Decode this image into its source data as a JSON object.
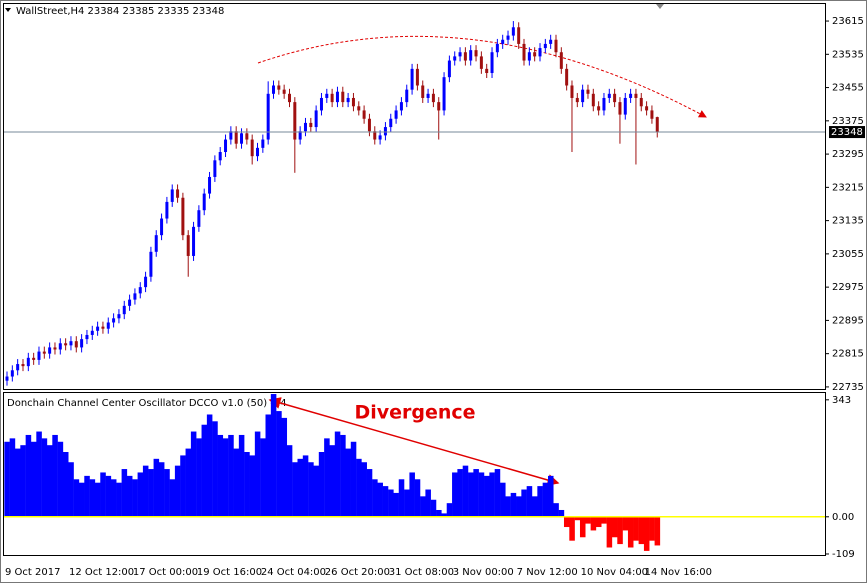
{
  "chart_data": [
    {
      "type": "candlestick",
      "title": "WallStreet,H4  23384 23385 23335 23348",
      "up_color": "#0000ff",
      "down_color": "#a01010",
      "ylim": [
        22730,
        23656
      ],
      "yticks": [
        23615,
        23535,
        23455,
        23375,
        23295,
        23215,
        23135,
        23055,
        22975,
        22895,
        22815,
        22735
      ],
      "last_price": 23348,
      "categories": [
        "9 Oct 2017",
        null,
        null,
        null,
        null,
        null,
        null,
        null,
        null,
        null,
        null,
        null,
        "12 Oct 12:00",
        null,
        null,
        null,
        null,
        null,
        null,
        null,
        null,
        null,
        null,
        null,
        "17 Oct 00:00",
        null,
        null,
        null,
        null,
        null,
        null,
        null,
        null,
        null,
        null,
        null,
        "19 Oct 16:00",
        null,
        null,
        null,
        null,
        null,
        null,
        null,
        null,
        null,
        null,
        null,
        "24 Oct 04:00",
        null,
        null,
        null,
        null,
        null,
        null,
        null,
        null,
        null,
        null,
        null,
        "26 Oct 20:00",
        null,
        null,
        null,
        null,
        null,
        null,
        null,
        null,
        null,
        null,
        null,
        "31 Oct 08:00",
        null,
        null,
        null,
        null,
        null,
        null,
        null,
        null,
        null,
        null,
        null,
        "3 Nov 00:00",
        null,
        null,
        null,
        null,
        null,
        null,
        null,
        null,
        null,
        null,
        null,
        "7 Nov 12:00",
        null,
        null,
        null,
        null,
        null,
        null,
        null,
        null,
        null,
        null,
        null,
        "10 Nov 04:00",
        null,
        null,
        null,
        null,
        null,
        null,
        null,
        null,
        null,
        null,
        null,
        "14 Nov 16:00",
        null,
        null
      ],
      "open": [
        22750,
        22760,
        22775,
        22790,
        22785,
        22805,
        22800,
        22820,
        22815,
        22830,
        22825,
        22840,
        22835,
        22845,
        22830,
        22850,
        22860,
        22870,
        22880,
        22875,
        22890,
        22900,
        22910,
        22930,
        22945,
        22960,
        22975,
        23000,
        23060,
        23100,
        23140,
        23180,
        23210,
        23190,
        23100,
        23050,
        23120,
        23160,
        23200,
        23240,
        23280,
        23300,
        23330,
        23350,
        23320,
        23345,
        23330,
        23290,
        23310,
        23330,
        23440,
        23460,
        23450,
        23440,
        23420,
        23330,
        23350,
        23370,
        23360,
        23400,
        23430,
        23440,
        23420,
        23445,
        23420,
        23430,
        23410,
        23400,
        23380,
        23350,
        23330,
        23340,
        23360,
        23380,
        23400,
        23420,
        23450,
        23500,
        23460,
        23430,
        23440,
        23420,
        23400,
        23480,
        23520,
        23530,
        23540,
        23520,
        23545,
        23530,
        23500,
        23490,
        23540,
        23560,
        23570,
        23580,
        23600,
        23560,
        23520,
        23540,
        23530,
        23550,
        23560,
        23570,
        23540,
        23500,
        23460,
        23430,
        23420,
        23450,
        23440,
        23410,
        23400,
        23430,
        23440,
        23420,
        23390,
        23430,
        23440,
        23430,
        23410,
        23400,
        23384
      ],
      "high": [
        22772,
        22787,
        22802,
        22802,
        22817,
        22817,
        22832,
        22832,
        22842,
        22842,
        22852,
        22852,
        22857,
        22857,
        22862,
        22872,
        22882,
        22892,
        22892,
        22902,
        22912,
        22922,
        22942,
        22957,
        22972,
        22987,
        23012,
        23072,
        23112,
        23152,
        23192,
        23222,
        23222,
        23202,
        23112,
        23132,
        23172,
        23212,
        23252,
        23292,
        23312,
        23342,
        23362,
        23362,
        23357,
        23357,
        23342,
        23322,
        23342,
        23470,
        23472,
        23472,
        23462,
        23452,
        23432,
        23362,
        23382,
        23382,
        23412,
        23442,
        23452,
        23452,
        23457,
        23457,
        23442,
        23442,
        23422,
        23412,
        23392,
        23362,
        23352,
        23372,
        23392,
        23412,
        23432,
        23462,
        23512,
        23512,
        23472,
        23452,
        23452,
        23432,
        23492,
        23532,
        23542,
        23552,
        23552,
        23557,
        23557,
        23542,
        23512,
        23552,
        23572,
        23582,
        23592,
        23615,
        23612,
        23572,
        23552,
        23552,
        23562,
        23572,
        23582,
        23582,
        23552,
        23512,
        23472,
        23442,
        23462,
        23462,
        23452,
        23422,
        23442,
        23452,
        23452,
        23432,
        23442,
        23452,
        23452,
        23442,
        23422,
        23412,
        23385
      ],
      "low": [
        22738,
        22748,
        22763,
        22773,
        22773,
        22788,
        22788,
        22803,
        22803,
        22813,
        22813,
        22823,
        22823,
        22818,
        22818,
        22838,
        22848,
        22858,
        22863,
        22863,
        22878,
        22888,
        22898,
        22918,
        22933,
        22948,
        22963,
        22988,
        23048,
        23088,
        23128,
        23168,
        23178,
        23088,
        23000,
        23038,
        23108,
        23148,
        23188,
        23228,
        23268,
        23288,
        23318,
        23308,
        23308,
        23318,
        23270,
        23278,
        23298,
        23318,
        23428,
        23438,
        23428,
        23408,
        23250,
        23318,
        23338,
        23348,
        23348,
        23388,
        23418,
        23408,
        23408,
        23408,
        23408,
        23398,
        23388,
        23368,
        23338,
        23318,
        23318,
        23328,
        23348,
        23368,
        23388,
        23408,
        23438,
        23448,
        23418,
        23418,
        23408,
        23330,
        23388,
        23468,
        23508,
        23518,
        23508,
        23508,
        23518,
        23488,
        23478,
        23478,
        23528,
        23548,
        23558,
        23568,
        23548,
        23508,
        23508,
        23518,
        23518,
        23538,
        23548,
        23528,
        23488,
        23448,
        23300,
        23408,
        23408,
        23428,
        23398,
        23388,
        23388,
        23418,
        23408,
        23320,
        23378,
        23418,
        23270,
        23398,
        23388,
        23368,
        23335
      ],
      "close": [
        22760,
        22775,
        22790,
        22785,
        22805,
        22800,
        22820,
        22815,
        22830,
        22825,
        22840,
        22835,
        22845,
        22830,
        22850,
        22860,
        22870,
        22880,
        22875,
        22890,
        22900,
        22910,
        22930,
        22945,
        22960,
        22975,
        23000,
        23060,
        23100,
        23140,
        23180,
        23210,
        23190,
        23100,
        23050,
        23120,
        23160,
        23200,
        23240,
        23280,
        23300,
        23330,
        23350,
        23320,
        23345,
        23330,
        23290,
        23310,
        23330,
        23440,
        23460,
        23450,
        23440,
        23420,
        23330,
        23350,
        23370,
        23360,
        23400,
        23430,
        23440,
        23420,
        23445,
        23420,
        23430,
        23410,
        23400,
        23380,
        23350,
        23330,
        23340,
        23360,
        23380,
        23400,
        23420,
        23450,
        23500,
        23460,
        23430,
        23440,
        23420,
        23400,
        23480,
        23520,
        23530,
        23540,
        23520,
        23545,
        23530,
        23500,
        23490,
        23540,
        23560,
        23570,
        23580,
        23600,
        23560,
        23520,
        23540,
        23530,
        23550,
        23560,
        23570,
        23540,
        23500,
        23460,
        23430,
        23420,
        23450,
        23440,
        23410,
        23400,
        23430,
        23440,
        23420,
        23390,
        23430,
        23440,
        23430,
        23410,
        23400,
        23380,
        23348
      ]
    },
    {
      "type": "bar",
      "title": "Donchain Channel Center Oscillator DCCO v1.0 (50) -84",
      "annotation": "Divergence",
      "positive_color": "#0000ff",
      "negative_color": "#ff0000",
      "zero_color": "#ffff00",
      "ylim": [
        -112,
        363
      ],
      "yticks": [
        343,
        {
          "value": 0,
          "label": "0.00"
        },
        -109
      ],
      "values": [
        220,
        230,
        200,
        210,
        240,
        220,
        250,
        230,
        210,
        240,
        220,
        190,
        160,
        110,
        100,
        120,
        110,
        100,
        130,
        120,
        110,
        100,
        140,
        120,
        110,
        130,
        150,
        140,
        170,
        160,
        140,
        110,
        150,
        180,
        200,
        250,
        230,
        270,
        300,
        280,
        240,
        230,
        240,
        200,
        240,
        190,
        180,
        250,
        230,
        300,
        360,
        310,
        290,
        210,
        160,
        170,
        180,
        160,
        150,
        190,
        230,
        210,
        250,
        240,
        200,
        220,
        170,
        160,
        140,
        110,
        100,
        90,
        80,
        70,
        110,
        80,
        130,
        110,
        60,
        80,
        50,
        20,
        10,
        40,
        130,
        140,
        150,
        130,
        140,
        130,
        120,
        130,
        140,
        100,
        60,
        70,
        60,
        80,
        90,
        60,
        90,
        100,
        120,
        40,
        20,
        -30,
        -70,
        -10,
        -60,
        -20,
        -40,
        -30,
        -20,
        -90,
        -60,
        -80,
        -40,
        -90,
        -70,
        -80,
        -100,
        -70,
        -84
      ]
    }
  ]
}
